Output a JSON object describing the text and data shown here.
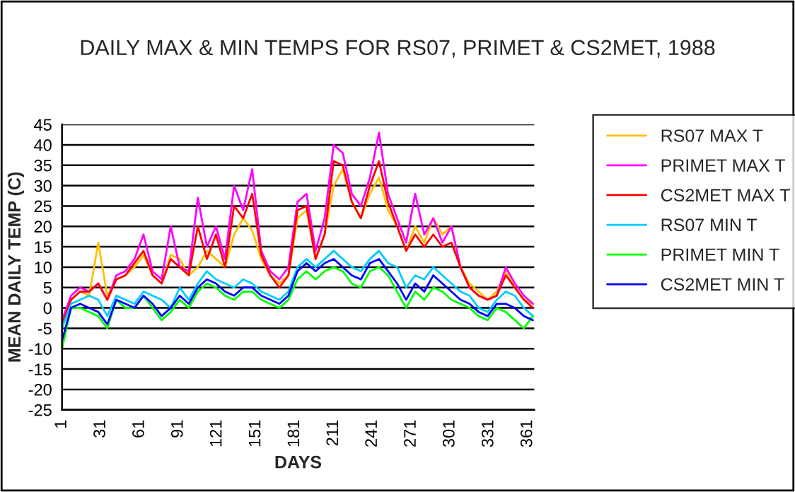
{
  "chart_data": {
    "type": "line",
    "title": "DAILY MAX & MIN TEMPS FOR RS07, PRIMET & CS2MET, 1988",
    "xlabel": "DAYS",
    "ylabel": "MEAN DAILY TEMP (C)",
    "x": [
      1,
      8,
      15,
      22,
      29,
      36,
      43,
      50,
      57,
      64,
      71,
      78,
      85,
      92,
      99,
      106,
      113,
      120,
      127,
      134,
      141,
      148,
      155,
      162,
      169,
      176,
      183,
      190,
      197,
      204,
      211,
      218,
      225,
      232,
      239,
      246,
      253,
      260,
      267,
      274,
      281,
      288,
      295,
      302,
      309,
      316,
      323,
      330,
      337,
      344,
      351,
      358,
      365
    ],
    "series": [
      {
        "name": "RS07 MAX T",
        "color": "#ffc000",
        "values": [
          -5,
          2,
          4,
          3,
          16,
          3,
          7,
          8,
          10,
          13,
          8,
          6,
          13,
          12,
          8,
          10,
          14,
          12,
          10,
          18,
          22,
          19,
          12,
          8,
          6,
          8,
          22,
          24,
          12,
          18,
          30,
          34,
          26,
          22,
          28,
          32,
          24,
          20,
          14,
          20,
          16,
          22,
          18,
          20,
          10,
          6,
          4,
          2,
          4,
          9,
          5,
          2,
          1
        ]
      },
      {
        "name": "PRIMET MAX T",
        "color": "#ff00ff",
        "values": [
          -3,
          3,
          5,
          4,
          6,
          2,
          8,
          9,
          12,
          18,
          9,
          7,
          20,
          10,
          9,
          27,
          15,
          20,
          12,
          30,
          24,
          34,
          14,
          9,
          7,
          10,
          26,
          28,
          14,
          22,
          40,
          38,
          28,
          25,
          32,
          43,
          28,
          22,
          16,
          28,
          18,
          22,
          16,
          20,
          10,
          5,
          3,
          2,
          3,
          10,
          6,
          3,
          1
        ]
      },
      {
        "name": "CS2MET MAX T",
        "color": "#ff0000",
        "values": [
          -4,
          2,
          4,
          4,
          6,
          2,
          7,
          8,
          11,
          14,
          8,
          6,
          12,
          10,
          8,
          20,
          12,
          18,
          10,
          25,
          22,
          28,
          13,
          8,
          5,
          8,
          24,
          25,
          12,
          18,
          36,
          35,
          26,
          22,
          30,
          36,
          26,
          20,
          14,
          18,
          15,
          18,
          15,
          16,
          10,
          5,
          3,
          2,
          3,
          8,
          5,
          2,
          0
        ]
      },
      {
        "name": "RS07 MIN T",
        "color": "#00ccff",
        "values": [
          -5,
          1,
          2,
          3,
          2,
          -2,
          3,
          2,
          1,
          4,
          3,
          2,
          0,
          5,
          2,
          6,
          9,
          7,
          6,
          5,
          7,
          6,
          4,
          3,
          2,
          4,
          10,
          12,
          10,
          12,
          14,
          12,
          10,
          9,
          12,
          14,
          11,
          10,
          5,
          8,
          7,
          10,
          8,
          6,
          4,
          3,
          0,
          -1,
          2,
          4,
          3,
          0,
          -2
        ]
      },
      {
        "name": "PRIMET MIN T",
        "color": "#00ff00",
        "values": [
          -10,
          0,
          0,
          -1,
          -2,
          -5,
          2,
          0,
          0,
          3,
          0,
          -3,
          -1,
          2,
          0,
          4,
          6,
          5,
          3,
          2,
          4,
          4,
          2,
          1,
          0,
          2,
          7,
          9,
          7,
          9,
          10,
          9,
          6,
          5,
          9,
          10,
          8,
          4,
          0,
          4,
          2,
          5,
          4,
          2,
          1,
          0,
          -2,
          -3,
          0,
          -1,
          -3,
          -5,
          -2
        ]
      },
      {
        "name": "CS2MET MIN T",
        "color": "#0000ff",
        "values": [
          -8,
          0,
          1,
          0,
          -1,
          -4,
          2,
          1,
          0,
          3,
          1,
          -2,
          0,
          3,
          1,
          5,
          7,
          6,
          4,
          3,
          5,
          5,
          3,
          2,
          1,
          3,
          9,
          11,
          9,
          11,
          12,
          10,
          8,
          7,
          11,
          12,
          9,
          6,
          2,
          6,
          4,
          8,
          6,
          4,
          2,
          1,
          -1,
          -2,
          1,
          1,
          0,
          -2,
          -3
        ]
      }
    ],
    "xlim": [
      1,
      366
    ],
    "xticks": [
      1,
      31,
      61,
      91,
      121,
      151,
      181,
      211,
      241,
      271,
      301,
      331,
      361
    ],
    "ylim": [
      -25,
      45
    ],
    "yticks": [
      -25,
      -20,
      -15,
      -10,
      -5,
      0,
      5,
      10,
      15,
      20,
      25,
      30,
      35,
      40,
      45
    ],
    "grid": "y",
    "legend": "right",
    "marker": "none",
    "line_style": "solid"
  }
}
